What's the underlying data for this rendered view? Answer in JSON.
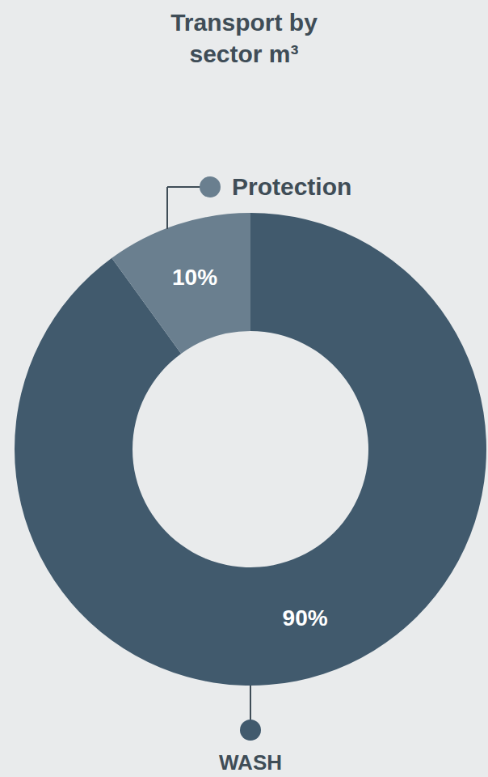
{
  "chart_data": {
    "type": "pie",
    "title": "Transport by sector m³",
    "categories": [
      "WASH",
      "Protection"
    ],
    "values": [
      90,
      10
    ],
    "value_labels": [
      "90%",
      "10%"
    ],
    "colors": [
      "#415a6d",
      "#6a7f8f"
    ],
    "data_labels": true
  }
}
